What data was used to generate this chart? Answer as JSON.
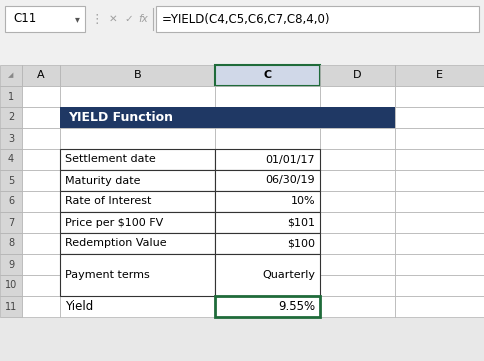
{
  "title": "YIELD Function",
  "title_bg": "#1F3864",
  "title_fg": "#FFFFFF",
  "formula_bar_cell": "C11",
  "formula_bar_text": "=YIELD(C4,C5,C6,C7,C8,4,0)",
  "col_headers": [
    "A",
    "B",
    "C",
    "D",
    "E"
  ],
  "table_rows": [
    [
      "Settlement date",
      "01/01/17"
    ],
    [
      "Maturity date",
      "06/30/19"
    ],
    [
      "Rate of Interest",
      "10%"
    ],
    [
      "Price per $100 FV",
      "$101"
    ],
    [
      "Redemption Value",
      "$100"
    ],
    [
      "Payment terms",
      "Quarterly"
    ]
  ],
  "yield_label": "Yield",
  "yield_value": "9.55%",
  "yield_cell_border": "#1F6B3A",
  "bg_color": "#E8E8E8",
  "cell_bg": "#FFFFFF",
  "header_bg": "#D6D6D6",
  "grid_color": "#B0B0B0",
  "col_c_selected_bg": "#D0D8E8",
  "toolbar_bg": "#F0F0F0",
  "formula_bar_bg": "#FFFFFF",
  "icon_color": "#A0A0A0",
  "second_bar_bg": "#F0F0F0"
}
